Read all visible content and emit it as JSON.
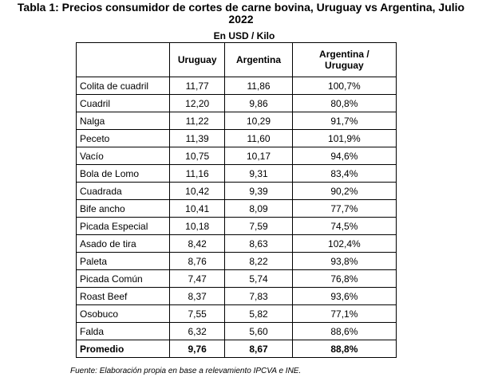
{
  "title_line1": "Tabla 1: Precios consumidor de cortes de carne bovina, Uruguay vs Argentina, Julio",
  "title_line2": "2022",
  "subtitle": "En USD / Kilo",
  "table": {
    "headers": {
      "cut": "",
      "uruguay": "Uruguay",
      "argentina": "Argentina",
      "ratio_line1": "Argentina /",
      "ratio_line2": "Uruguay"
    },
    "rows": [
      {
        "cut": "Colita de cuadril",
        "uruguay": "11,77",
        "argentina": "11,86",
        "ratio": "100,7%"
      },
      {
        "cut": "Cuadril",
        "uruguay": "12,20",
        "argentina": "9,86",
        "ratio": "80,8%"
      },
      {
        "cut": "Nalga",
        "uruguay": "11,22",
        "argentina": "10,29",
        "ratio": "91,7%"
      },
      {
        "cut": "Peceto",
        "uruguay": "11,39",
        "argentina": "11,60",
        "ratio": "101,9%"
      },
      {
        "cut": "Vacío",
        "uruguay": "10,75",
        "argentina": "10,17",
        "ratio": "94,6%"
      },
      {
        "cut": "Bola de Lomo",
        "uruguay": "11,16",
        "argentina": "9,31",
        "ratio": "83,4%"
      },
      {
        "cut": "Cuadrada",
        "uruguay": "10,42",
        "argentina": "9,39",
        "ratio": "90,2%"
      },
      {
        "cut": "Bife ancho",
        "uruguay": "10,41",
        "argentina": "8,09",
        "ratio": "77,7%"
      },
      {
        "cut": "Picada Especial",
        "uruguay": "10,18",
        "argentina": "7,59",
        "ratio": "74,5%"
      },
      {
        "cut": "Asado de tira",
        "uruguay": "8,42",
        "argentina": "8,63",
        "ratio": "102,4%"
      },
      {
        "cut": "Paleta",
        "uruguay": "8,76",
        "argentina": "8,22",
        "ratio": "93,8%"
      },
      {
        "cut": "Picada Común",
        "uruguay": "7,47",
        "argentina": "5,74",
        "ratio": "76,8%"
      },
      {
        "cut": "Roast Beef",
        "uruguay": "8,37",
        "argentina": "7,83",
        "ratio": "93,6%"
      },
      {
        "cut": "Osobuco",
        "uruguay": "7,55",
        "argentina": "5,82",
        "ratio": "77,1%"
      },
      {
        "cut": "Falda",
        "uruguay": "6,32",
        "argentina": "5,60",
        "ratio": "88,6%"
      }
    ],
    "total": {
      "cut": "Promedio",
      "uruguay": "9,76",
      "argentina": "8,67",
      "ratio": "88,8%"
    }
  },
  "source": "Fuente: Elaboración propia en base a relevamiento IPCVA e INE."
}
